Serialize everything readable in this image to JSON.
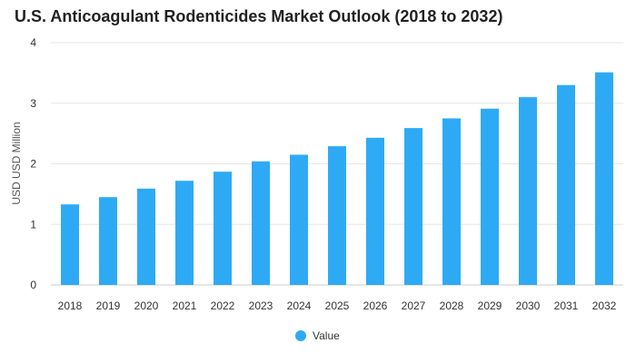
{
  "chart_data": {
    "type": "bar",
    "title": "U.S. Anticoagulant Rodenticides Market Outlook (2018 to 2032)",
    "xlabel": "",
    "ylabel": "USD USD Million",
    "categories": [
      "2018",
      "2019",
      "2020",
      "2021",
      "2022",
      "2023",
      "2024",
      "2025",
      "2026",
      "2027",
      "2028",
      "2029",
      "2030",
      "2031",
      "2032"
    ],
    "series": [
      {
        "name": "Value",
        "values": [
          1.33,
          1.45,
          1.59,
          1.72,
          1.87,
          2.04,
          2.15,
          2.29,
          2.43,
          2.59,
          2.75,
          2.91,
          3.1,
          3.3,
          3.51
        ],
        "color": "#2eaaf5"
      }
    ],
    "ylim": [
      0,
      4
    ],
    "yticks": [
      0,
      1,
      2,
      3,
      4
    ],
    "grid": true,
    "legend_position": "bottom"
  }
}
